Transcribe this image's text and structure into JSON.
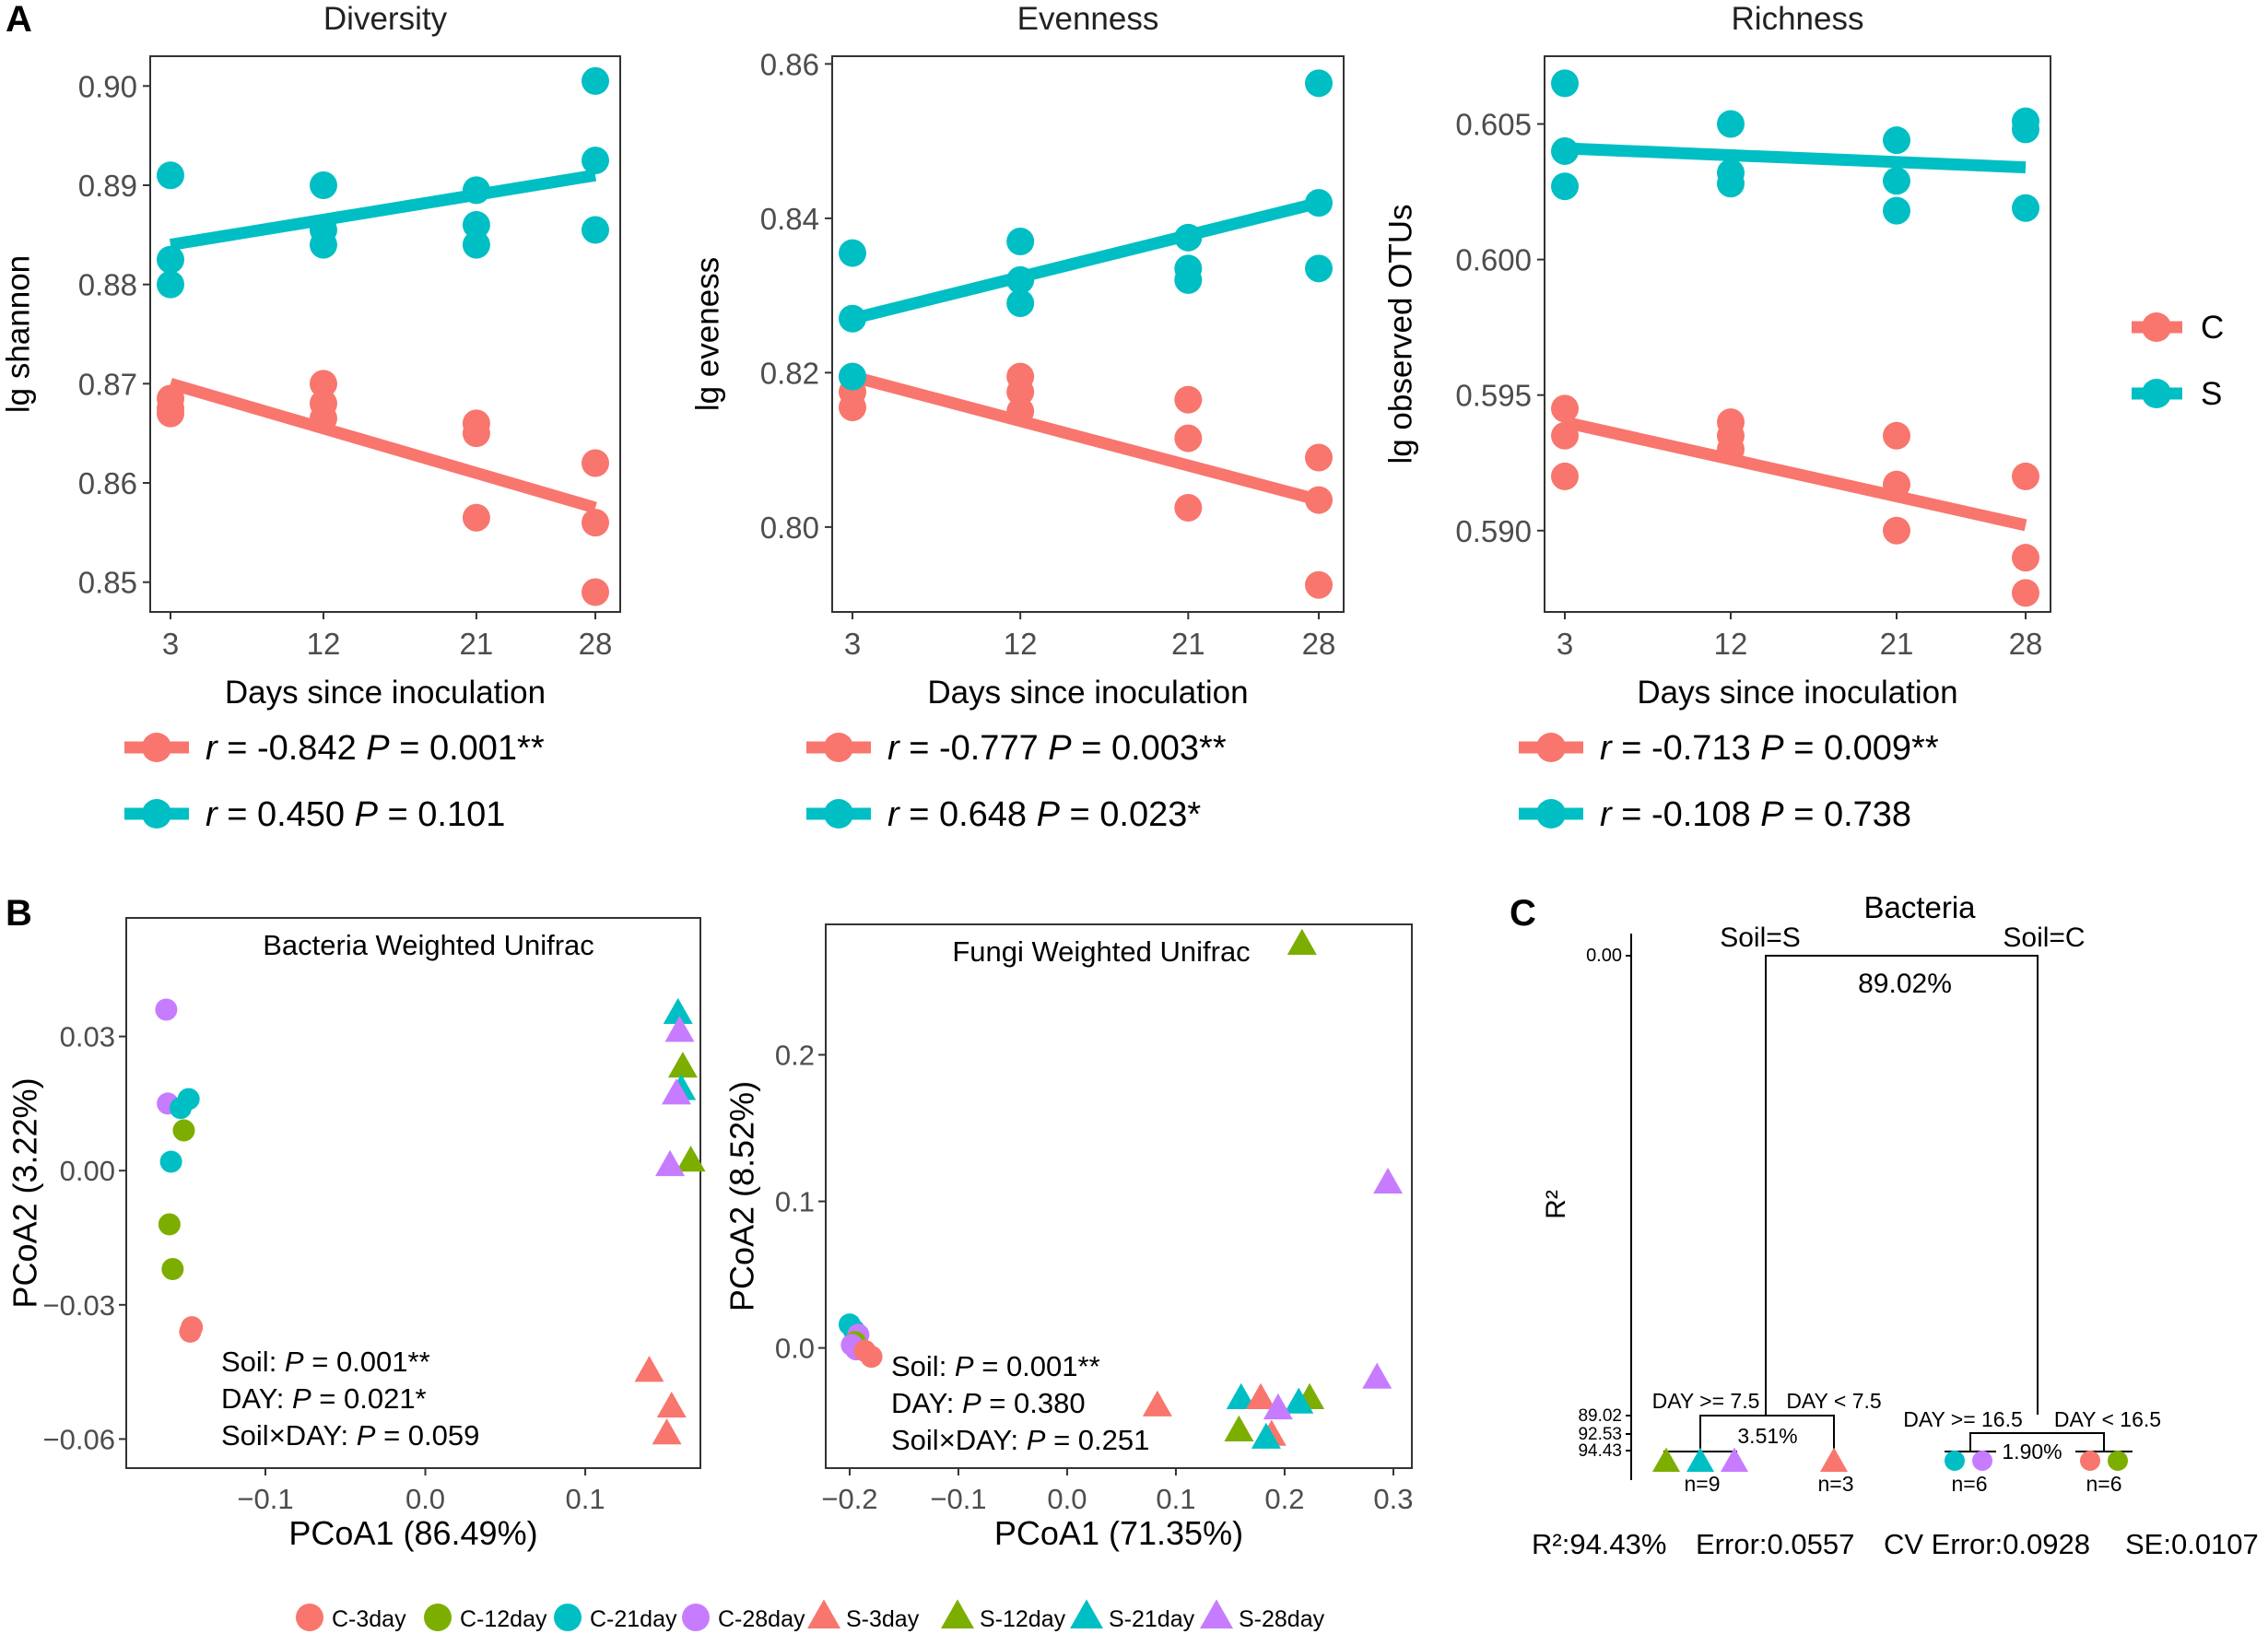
{
  "figure": {
    "panel_labels": [
      "A",
      "B",
      "C"
    ],
    "legend_a": [
      {
        "label": "C",
        "color": "#F8766D"
      },
      {
        "label": "S",
        "color": "#00BFC4"
      }
    ],
    "legend_b": [
      {
        "label": "C-3day",
        "color": "#F8766D",
        "shape": "circle"
      },
      {
        "label": "C-12day",
        "color": "#7CAE00",
        "shape": "circle"
      },
      {
        "label": "C-21day",
        "color": "#00BFC4",
        "shape": "circle"
      },
      {
        "label": "C-28day",
        "color": "#C77CFF",
        "shape": "circle"
      },
      {
        "label": "S-3day",
        "color": "#F8766D",
        "shape": "triangle"
      },
      {
        "label": "S-12day",
        "color": "#7CAE00",
        "shape": "triangle"
      },
      {
        "label": "S-21day",
        "color": "#00BFC4",
        "shape": "triangle"
      },
      {
        "label": "S-28day",
        "color": "#C77CFF",
        "shape": "triangle"
      }
    ]
  },
  "chart_data": [
    {
      "type": "scatter",
      "panel": "A",
      "title": "Diversity",
      "xlabel": "Days since inoculation",
      "ylabel": "lg shannon",
      "x_ticks": [
        3,
        12,
        21,
        28
      ],
      "y_ticks": [
        "0.85",
        "0.86",
        "0.87",
        "0.88",
        "0.89",
        "0.90"
      ],
      "ylim": [
        0.847,
        0.903
      ],
      "series": [
        {
          "name": "C",
          "color": "#F8766D",
          "points": [
            [
              3,
              0.8685
            ],
            [
              3,
              0.8675
            ],
            [
              3,
              0.867
            ],
            [
              12,
              0.87
            ],
            [
              12,
              0.868
            ],
            [
              12,
              0.8665
            ],
            [
              21,
              0.866
            ],
            [
              21,
              0.865
            ],
            [
              21,
              0.8565
            ],
            [
              28,
              0.862
            ],
            [
              28,
              0.856
            ],
            [
              28,
              0.849
            ]
          ],
          "fit": [
            [
              3,
              0.87
            ],
            [
              28,
              0.8575
            ]
          ]
        },
        {
          "name": "S",
          "color": "#00BFC4",
          "points": [
            [
              3,
              0.891
            ],
            [
              3,
              0.8825
            ],
            [
              3,
              0.88
            ],
            [
              12,
              0.89
            ],
            [
              12,
              0.8855
            ],
            [
              12,
              0.884
            ],
            [
              21,
              0.8895
            ],
            [
              21,
              0.886
            ],
            [
              21,
              0.884
            ],
            [
              28,
              0.9005
            ],
            [
              28,
              0.8925
            ],
            [
              28,
              0.8855
            ]
          ],
          "fit": [
            [
              3,
              0.884
            ],
            [
              28,
              0.891
            ]
          ]
        }
      ],
      "stats": [
        {
          "series": "C",
          "r_label": "r",
          "r_text": " = -0.842 ",
          "p_label": "P",
          "p_text": " = 0.001**"
        },
        {
          "series": "S",
          "r_label": "r",
          "r_text": " = 0.450 ",
          "p_label": "P",
          "p_text": " = 0.101"
        }
      ]
    },
    {
      "type": "scatter",
      "panel": "A",
      "title": "Evenness",
      "xlabel": "Days since inoculation",
      "ylabel": "lg eveness",
      "x_ticks": [
        3,
        12,
        21,
        28
      ],
      "y_ticks": [
        "0.80",
        "0.82",
        "0.84",
        "0.86"
      ],
      "ylim": [
        0.789,
        0.861
      ],
      "series": [
        {
          "name": "C",
          "color": "#F8766D",
          "points": [
            [
              3,
              0.8195
            ],
            [
              3,
              0.8175
            ],
            [
              3,
              0.8155
            ],
            [
              12,
              0.8195
            ],
            [
              12,
              0.8175
            ],
            [
              12,
              0.815
            ],
            [
              21,
              0.8165
            ],
            [
              21,
              0.8115
            ],
            [
              21,
              0.8025
            ],
            [
              28,
              0.809
            ],
            [
              28,
              0.8035
            ],
            [
              28,
              0.7925
            ]
          ],
          "fit": [
            [
              3,
              0.8195
            ],
            [
              28,
              0.8035
            ]
          ]
        },
        {
          "name": "S",
          "color": "#00BFC4",
          "points": [
            [
              3,
              0.8355
            ],
            [
              3,
              0.827
            ],
            [
              3,
              0.8195
            ],
            [
              12,
              0.837
            ],
            [
              12,
              0.832
            ],
            [
              12,
              0.829
            ],
            [
              21,
              0.8375
            ],
            [
              21,
              0.8335
            ],
            [
              21,
              0.832
            ],
            [
              28,
              0.8575
            ],
            [
              28,
              0.842
            ],
            [
              28,
              0.8335
            ]
          ],
          "fit": [
            [
              3,
              0.827
            ],
            [
              28,
              0.842
            ]
          ]
        }
      ],
      "stats": [
        {
          "series": "C",
          "r_label": "r",
          "r_text": " = -0.777 ",
          "p_label": "P",
          "p_text": " = 0.003**"
        },
        {
          "series": "S",
          "r_label": "r",
          "r_text": " = 0.648 ",
          "p_label": "P",
          "p_text": " = 0.023*"
        }
      ]
    },
    {
      "type": "scatter",
      "panel": "A",
      "title": "Richness",
      "xlabel": "Days since inoculation",
      "ylabel": "lg observed OTUs",
      "x_ticks": [
        3,
        12,
        21,
        28
      ],
      "y_ticks": [
        "0.590",
        "0.595",
        "0.600",
        "0.605"
      ],
      "ylim": [
        0.587,
        0.6075
      ],
      "series": [
        {
          "name": "C",
          "color": "#F8766D",
          "points": [
            [
              3,
              0.5945
            ],
            [
              3,
              0.5935
            ],
            [
              3,
              0.592
            ],
            [
              12,
              0.594
            ],
            [
              12,
              0.5935
            ],
            [
              12,
              0.593
            ],
            [
              21,
              0.5935
            ],
            [
              21,
              0.5917
            ],
            [
              21,
              0.59
            ],
            [
              28,
              0.592
            ],
            [
              28,
              0.589
            ],
            [
              28,
              0.5877
            ]
          ],
          "fit": [
            [
              3,
              0.594
            ],
            [
              28,
              0.5902
            ]
          ]
        },
        {
          "name": "S",
          "color": "#00BFC4",
          "points": [
            [
              3,
              0.6065
            ],
            [
              3,
              0.604
            ],
            [
              3,
              0.6027
            ],
            [
              12,
              0.605
            ],
            [
              12,
              0.6032
            ],
            [
              12,
              0.6028
            ],
            [
              21,
              0.6044
            ],
            [
              21,
              0.6029
            ],
            [
              21,
              0.6018
            ],
            [
              28,
              0.6051
            ],
            [
              28,
              0.6048
            ],
            [
              28,
              0.6019
            ]
          ],
          "fit": [
            [
              3,
              0.6041
            ],
            [
              28,
              0.6034
            ]
          ]
        }
      ],
      "stats": [
        {
          "series": "C",
          "r_label": "r",
          "r_text": " = -0.713 ",
          "p_label": "P",
          "p_text": " = 0.009**"
        },
        {
          "series": "S",
          "r_label": "r",
          "r_text": " = -0.108 ",
          "p_label": "P",
          "p_text": " = 0.738"
        }
      ]
    },
    {
      "type": "scatter",
      "panel": "B",
      "title": "Bacteria Weighted Unifrac",
      "xlabel": "PCoA1 (86.49%)",
      "ylabel": "PCoA2 (3.22%)",
      "x_ticks": [
        -0.1,
        0.0,
        0.1
      ],
      "x_tick_labels": [
        "−0.1",
        "0.0",
        "0.1"
      ],
      "y_ticks": [
        0.03,
        0.0,
        -0.03,
        -0.06
      ],
      "y_tick_labels": [
        "0.03",
        "0.00",
        "−0.03",
        "−0.06"
      ],
      "xlim": [
        -0.187,
        0.172
      ],
      "ylim": [
        -0.0665,
        0.0565
      ],
      "points": [
        {
          "group": "C-28day",
          "x": -0.162,
          "y": 0.036
        },
        {
          "group": "C-28day",
          "x": -0.161,
          "y": 0.015
        },
        {
          "group": "C-21day",
          "x": -0.159,
          "y": 0.002
        },
        {
          "group": "C-21day",
          "x": -0.148,
          "y": 0.016
        },
        {
          "group": "C-21day",
          "x": -0.153,
          "y": 0.014
        },
        {
          "group": "C-12day",
          "x": -0.151,
          "y": 0.009
        },
        {
          "group": "C-12day",
          "x": -0.16,
          "y": -0.012
        },
        {
          "group": "C-12day",
          "x": -0.158,
          "y": -0.022
        },
        {
          "group": "C-3day",
          "x": -0.146,
          "y": -0.035
        },
        {
          "group": "C-3day",
          "x": -0.147,
          "y": -0.036
        },
        {
          "group": "S-21day",
          "x": 0.158,
          "y": 0.035
        },
        {
          "group": "S-28day",
          "x": 0.159,
          "y": 0.031
        },
        {
          "group": "S-12day",
          "x": 0.161,
          "y": 0.023
        },
        {
          "group": "S-21day",
          "x": 0.16,
          "y": 0.018
        },
        {
          "group": "S-28day",
          "x": 0.157,
          "y": 0.017
        },
        {
          "group": "S-12day",
          "x": 0.166,
          "y": 0.002
        },
        {
          "group": "S-28day",
          "x": 0.153,
          "y": 0.001
        },
        {
          "group": "S-3day",
          "x": 0.14,
          "y": -0.045
        },
        {
          "group": "S-3day",
          "x": 0.154,
          "y": -0.053
        },
        {
          "group": "S-3day",
          "x": 0.151,
          "y": -0.059
        }
      ],
      "annotations": [
        {
          "name": "Soil: ",
          "p_label": "P",
          "p_text": " = 0.001**"
        },
        {
          "name": "DAY: ",
          "p_label": "P",
          "p_text": " = 0.021*"
        },
        {
          "name": "Soil×DAY: ",
          "p_label": "P",
          "p_text": " = 0.059"
        }
      ]
    },
    {
      "type": "scatter",
      "panel": "B",
      "title": "Fungi Weighted Unifrac",
      "xlabel": "PCoA1 (71.35%)",
      "ylabel": "PCoA2 (8.52%)",
      "x_ticks": [
        -0.2,
        -0.1,
        0.0,
        0.1,
        0.2,
        0.3
      ],
      "x_tick_labels": [
        "−0.2",
        "−0.1",
        "0.0",
        "0.1",
        "0.2",
        "0.3"
      ],
      "y_ticks": [
        0.2,
        0.1,
        0.0
      ],
      "y_tick_labels": [
        "0.2",
        "0.1",
        "0.0"
      ],
      "xlim": [
        -0.222,
        0.317
      ],
      "ylim": [
        -0.082,
        0.289
      ],
      "points": [
        {
          "group": "C-21day",
          "x": -0.2,
          "y": 0.016
        },
        {
          "group": "C-21day",
          "x": -0.196,
          "y": 0.012
        },
        {
          "group": "C-28day",
          "x": -0.192,
          "y": 0.009
        },
        {
          "group": "C-12day",
          "x": -0.195,
          "y": 0.004
        },
        {
          "group": "C-28day",
          "x": -0.198,
          "y": 0.002
        },
        {
          "group": "C-28day",
          "x": -0.194,
          "y": -0.001
        },
        {
          "group": "C-3day",
          "x": -0.186,
          "y": -0.002
        },
        {
          "group": "C-3day",
          "x": -0.18,
          "y": -0.006
        },
        {
          "group": "S-12day",
          "x": 0.216,
          "y": 0.275
        },
        {
          "group": "S-28day",
          "x": 0.295,
          "y": 0.112
        },
        {
          "group": "S-28day",
          "x": 0.285,
          "y": -0.021
        },
        {
          "group": "S-3day",
          "x": 0.083,
          "y": -0.04
        },
        {
          "group": "S-21day",
          "x": 0.16,
          "y": -0.035
        },
        {
          "group": "S-3day",
          "x": 0.178,
          "y": -0.035
        },
        {
          "group": "S-12day",
          "x": 0.223,
          "y": -0.035
        },
        {
          "group": "S-21day",
          "x": 0.213,
          "y": -0.038
        },
        {
          "group": "S-28day",
          "x": 0.194,
          "y": -0.042
        },
        {
          "group": "S-12day",
          "x": 0.158,
          "y": -0.057
        },
        {
          "group": "S-3day",
          "x": 0.188,
          "y": -0.06
        },
        {
          "group": "S-21day",
          "x": 0.183,
          "y": -0.062
        }
      ],
      "annotations": [
        {
          "name": "Soil: ",
          "p_label": "P",
          "p_text": " = 0.001**"
        },
        {
          "name": "DAY: ",
          "p_label": "P",
          "p_text": " = 0.380"
        },
        {
          "name": "Soil×DAY: ",
          "p_label": "P",
          "p_text": " = 0.251"
        }
      ]
    },
    {
      "type": "tree",
      "panel": "C",
      "title": "Bacteria",
      "ylabel": "R²",
      "y_ticks": [
        "0.00",
        "89.02",
        "92.53",
        "94.43"
      ],
      "root_split": {
        "left": "Soil=S",
        "right": "Soil=C",
        "explained": "89.02%"
      },
      "left_split": {
        "left": "DAY >= 7.5",
        "right": "DAY < 7.5",
        "explained": "3.51%",
        "leaves": [
          {
            "groups": [
              "S-12day",
              "S-21day",
              "S-28day"
            ],
            "n": "n=9"
          },
          {
            "groups": [
              "S-3day"
            ],
            "n": "n=3"
          }
        ]
      },
      "right_split": {
        "left": "DAY >= 16.5",
        "right": "DAY < 16.5",
        "explained": "1.90%",
        "leaves": [
          {
            "groups": [
              "C-21day",
              "C-28day"
            ],
            "n": "n=6"
          },
          {
            "groups": [
              "C-3day",
              "C-12day"
            ],
            "n": "n=6"
          }
        ]
      },
      "footer": {
        "r2": "R²:94.43%",
        "error": "Error:0.0557",
        "cv_error": "CV Error:0.0928",
        "se": "SE:0.0107"
      }
    }
  ]
}
